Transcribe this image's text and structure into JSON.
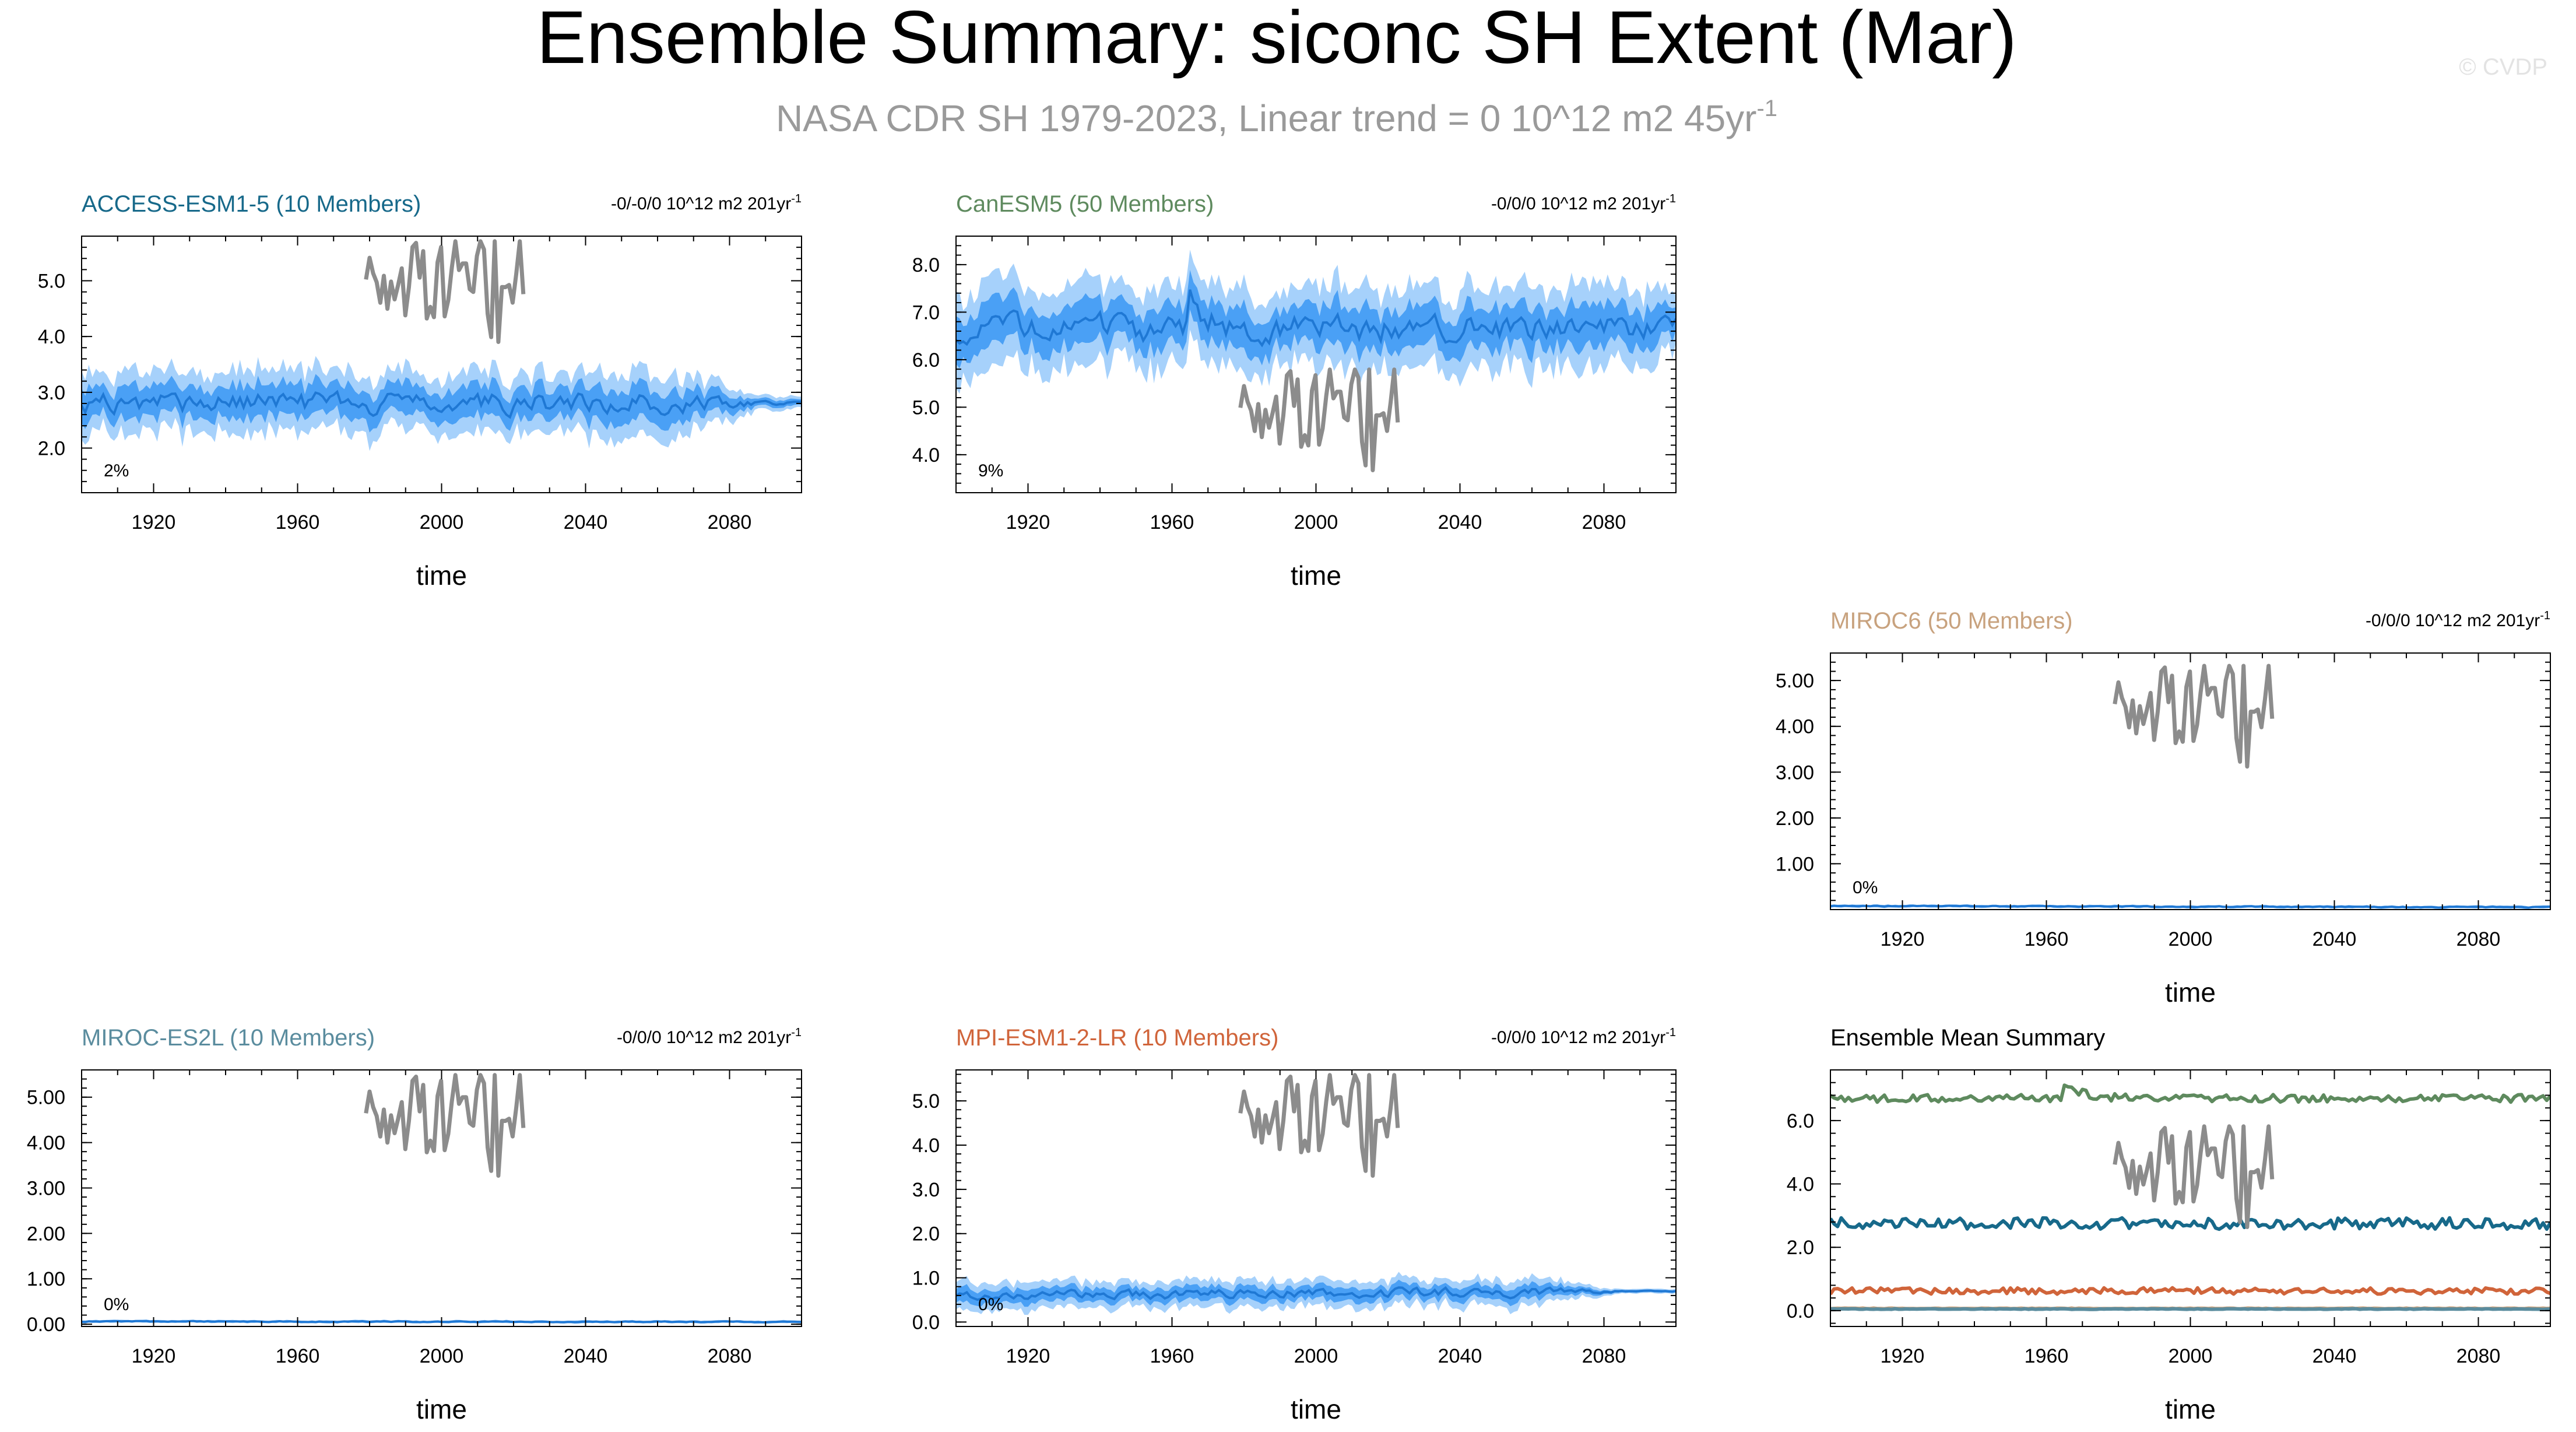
{
  "page": {
    "title": "Ensemble Summary: siconc SH Extent (Mar)",
    "subtitle_text": "NASA CDR SH 1979-2023, Linear trend = 0 10^12 m2 45yr",
    "subtitle_sup": "-1",
    "watermark": "© CVDP"
  },
  "colors": {
    "band_outer": "#a6d1fb",
    "band_inner": "#4aa0f5",
    "mean_line": "#1f78d4",
    "observation": "#8c8c8c",
    "frame": "#000000"
  },
  "chart_data": [
    {
      "id": "access",
      "type": "area",
      "title": "ACCESS-ESM1-5 (10 Members)",
      "title_color": "#17698a",
      "trend_label": "-0/-0/0 10^12 m2 201yr",
      "trend_sup": "-1",
      "pct_label": "2%",
      "xlabel": "time",
      "xlim": [
        1900,
        2100
      ],
      "xticks": [
        1920,
        1960,
        2000,
        2040,
        2080
      ],
      "xtick_labels": [
        "1920",
        "1960",
        "2000",
        "2040",
        "2080"
      ],
      "ylim": [
        1.2,
        5.8
      ],
      "yticks": [
        2,
        3,
        4,
        5
      ],
      "ytick_labels": [
        "2.0",
        "3.0",
        "4.0",
        "5.0"
      ],
      "series": {
        "mean_start": 2.8,
        "mean_end": 2.8,
        "outer_half": 0.55,
        "inner_half": 0.28,
        "calm_after": 2065,
        "end_half": 0.12,
        "jump_year": null,
        "jump_size": 0
      }
    },
    {
      "id": "canesm",
      "type": "area",
      "title": "CanESM5 (50 Members)",
      "title_color": "#5e8a5e",
      "trend_label": "-0/0/0 10^12 m2 201yr",
      "trend_sup": "-1",
      "pct_label": "9%",
      "xlabel": "time",
      "xlim": [
        1900,
        2100
      ],
      "xticks": [
        1920,
        1960,
        2000,
        2040,
        2080
      ],
      "xtick_labels": [
        "1920",
        "1960",
        "2000",
        "2040",
        "2080"
      ],
      "ylim": [
        3.2,
        8.6
      ],
      "yticks": [
        4,
        5,
        6,
        7,
        8
      ],
      "ytick_labels": [
        "4.0",
        "5.0",
        "6.0",
        "7.0",
        "8.0"
      ],
      "series": {
        "mean_start": 6.6,
        "mean_end": 6.7,
        "outer_half": 0.85,
        "inner_half": 0.42,
        "calm_after": 2090,
        "end_half": 0.3,
        "jump_year": 1965,
        "jump_size": 0.6
      }
    },
    {
      "id": "miroc6",
      "type": "area",
      "title": "MIROC6 (50 Members)",
      "title_color": "#c8a27e",
      "trend_label": "-0/0/0 10^12 m2 201yr",
      "trend_sup": "-1",
      "pct_label": "0%",
      "xlabel": "time",
      "xlim": [
        1900,
        2100
      ],
      "xticks": [
        1920,
        1960,
        2000,
        2040,
        2080
      ],
      "xtick_labels": [
        "1920",
        "1960",
        "2000",
        "2040",
        "2080"
      ],
      "ylim": [
        0.0,
        5.6
      ],
      "yticks": [
        1,
        2,
        3,
        4,
        5
      ],
      "ytick_labels": [
        "1.00",
        "2.00",
        "3.00",
        "4.00",
        "5.00"
      ],
      "series": {
        "mean_start": 0.08,
        "mean_end": 0.05,
        "outer_half": 0.03,
        "inner_half": 0.015,
        "calm_after": 2100,
        "end_half": 0.03,
        "jump_year": null,
        "jump_size": 0
      }
    },
    {
      "id": "mirocesl",
      "type": "area",
      "title": "MIROC-ES2L (10 Members)",
      "title_color": "#5a8c9e",
      "trend_label": "-0/0/0 10^12 m2 201yr",
      "trend_sup": "-1",
      "pct_label": "0%",
      "xlabel": "time",
      "xlim": [
        1900,
        2100
      ],
      "xticks": [
        1920,
        1960,
        2000,
        2040,
        2080
      ],
      "xtick_labels": [
        "1920",
        "1960",
        "2000",
        "2040",
        "2080"
      ],
      "ylim": [
        -0.05,
        5.6
      ],
      "yticks": [
        0,
        1,
        2,
        3,
        4,
        5
      ],
      "ytick_labels": [
        "0.00",
        "1.00",
        "2.00",
        "3.00",
        "4.00",
        "5.00"
      ],
      "series": {
        "mean_start": 0.06,
        "mean_end": 0.05,
        "outer_half": 0.03,
        "inner_half": 0.015,
        "calm_after": 2100,
        "end_half": 0.03,
        "jump_year": null,
        "jump_size": 0
      }
    },
    {
      "id": "mpi",
      "type": "area",
      "title": "MPI-ESM1-2-LR (10 Members)",
      "title_color": "#d0643a",
      "trend_label": "-0/0/0 10^12 m2 201yr",
      "trend_sup": "-1",
      "pct_label": "0%",
      "xlabel": "time",
      "xlim": [
        1900,
        2100
      ],
      "xticks": [
        1920,
        1960,
        2000,
        2040,
        2080
      ],
      "xtick_labels": [
        "1920",
        "1960",
        "2000",
        "2040",
        "2080"
      ],
      "ylim": [
        -0.1,
        5.7
      ],
      "yticks": [
        0,
        1,
        2,
        3,
        4,
        5
      ],
      "ytick_labels": [
        "0.0",
        "1.0",
        "2.0",
        "3.0",
        "4.0",
        "5.0"
      ],
      "series": {
        "mean_start": 0.6,
        "mean_end": 0.7,
        "outer_half": 0.3,
        "inner_half": 0.15,
        "calm_after": 2060,
        "end_half": 0.05,
        "jump_year": null,
        "jump_size": 0
      }
    },
    {
      "id": "ensmean",
      "type": "line",
      "title": "Ensemble Mean Summary",
      "title_color": "#000000",
      "xlabel": "time",
      "xlim": [
        1900,
        2100
      ],
      "xticks": [
        1920,
        1960,
        2000,
        2040,
        2080
      ],
      "xtick_labels": [
        "1920",
        "1960",
        "2000",
        "2040",
        "2080"
      ],
      "ylim": [
        -0.5,
        7.6
      ],
      "yticks": [
        0,
        2,
        4,
        6
      ],
      "ytick_labels": [
        "0.0",
        "2.0",
        "4.0",
        "6.0"
      ],
      "lines": [
        {
          "name": "CanESM5",
          "color": "#5e8a5e",
          "mean": 6.7,
          "noise": 0.12,
          "jump_year": 1965,
          "jump_size": 0.5
        },
        {
          "name": "ACCESS-ESM1-5",
          "color": "#17698a",
          "mean": 2.75,
          "noise": 0.18,
          "jump_year": null,
          "jump_size": 0
        },
        {
          "name": "MPI-ESM1-2-LR",
          "color": "#d0643a",
          "mean": 0.62,
          "noise": 0.1,
          "jump_year": null,
          "jump_size": 0
        },
        {
          "name": "MIROC6",
          "color": "#c8a27e",
          "mean": 0.07,
          "noise": 0.01,
          "jump_year": null,
          "jump_size": 0
        },
        {
          "name": "MIROC-ES2L",
          "color": "#5a8c9e",
          "mean": 0.05,
          "noise": 0.01,
          "jump_year": null,
          "jump_size": 0
        }
      ]
    }
  ]
}
